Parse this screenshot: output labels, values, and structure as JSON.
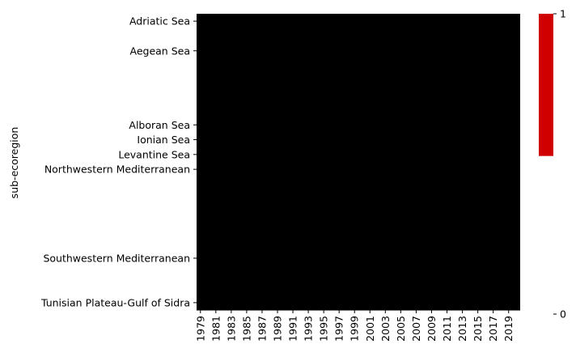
{
  "chart_data": {
    "type": "heatmap",
    "title": "",
    "xlabel": "",
    "ylabel": "sub-ecoregion",
    "x_start": 1979,
    "x_end": 2020,
    "x_tick_labels": [
      "1979",
      "1981",
      "1983",
      "1985",
      "1987",
      "1989",
      "1991",
      "1993",
      "1995",
      "1997",
      "1999",
      "2001",
      "2003",
      "2005",
      "2007",
      "2009",
      "2011",
      "2013",
      "2015",
      "2017",
      "2019"
    ],
    "y_tick_labels": [
      {
        "label": "Adriatic Sea",
        "row": 0
      },
      {
        "label": "Aegean Sea",
        "row": 2
      },
      {
        "label": "Alboran Sea",
        "row": 7
      },
      {
        "label": "Ionian Sea",
        "row": 8
      },
      {
        "label": "Levantine Sea",
        "row": 9
      },
      {
        "label": "Northwestern Mediterranean",
        "row": 10
      },
      {
        "label": "Southwestern Mediterranean",
        "row": 16
      },
      {
        "label": "Tunisian Plateau-Gulf of Sidra",
        "row": 19
      }
    ],
    "row_count": 20,
    "cell_value": 0,
    "cell_color": "#000000",
    "grid": false,
    "colorbar": {
      "min": 0,
      "max": 1,
      "tick_labels": [
        "1",
        "0"
      ],
      "color_high": "#d00000",
      "color_low": "#000000",
      "filled_fraction": 0.48
    }
  }
}
